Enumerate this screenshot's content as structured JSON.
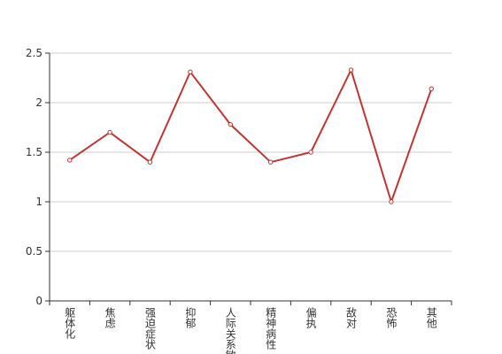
{
  "chart_data": {
    "type": "line",
    "categories": [
      "躯体化",
      "焦虑",
      "强迫症状",
      "抑郁",
      "人际关系敏感",
      "精神病性",
      "偏执",
      "敌对",
      "恐怖",
      "其他"
    ],
    "values": [
      1.42,
      1.7,
      1.4,
      2.31,
      1.78,
      1.4,
      1.5,
      2.33,
      1.0,
      2.14
    ],
    "color": "#c23531",
    "ylim": [
      0,
      2.5
    ],
    "yticks": [
      0,
      0.5,
      1,
      1.5,
      2,
      2.5
    ],
    "grid": true
  }
}
